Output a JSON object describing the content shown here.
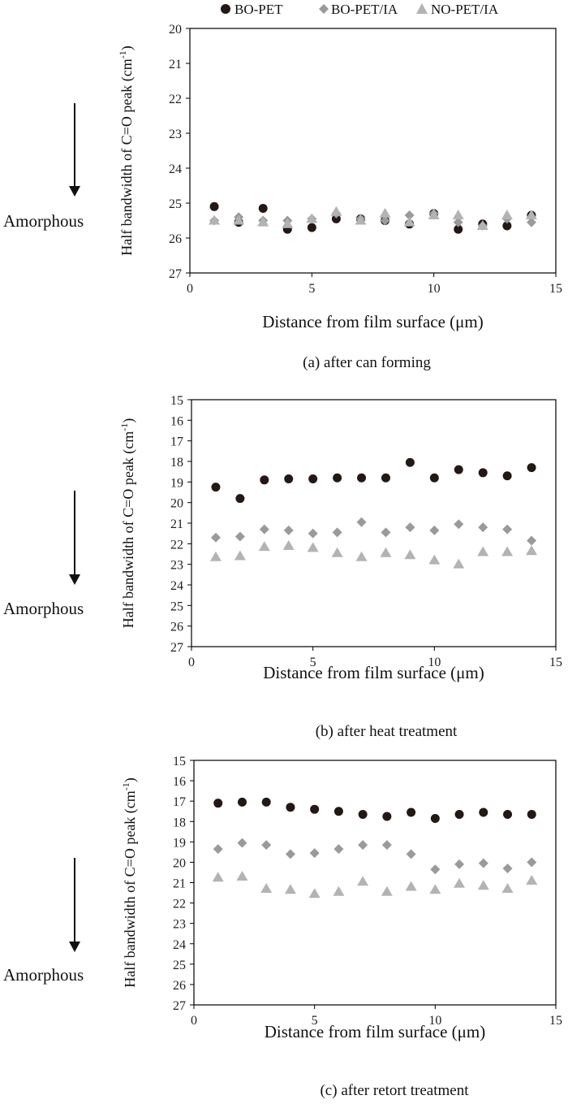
{
  "legend": {
    "items": [
      {
        "label": "BO-PET",
        "color": "#231815",
        "marker": "circle"
      },
      {
        "label": "BO-PET/IA",
        "color": "#9a9a9a",
        "marker": "diamond"
      },
      {
        "label": "NO-PET/IA",
        "color": "#b3b3b3",
        "marker": "triangle"
      }
    ]
  },
  "common": {
    "amorphous_label": "Amorphous",
    "ylabel": "Half bandwidth of C=O peak (cm",
    "ylabel_sup": "-1",
    "ylabel_close": ")",
    "xlabel": "Distance from film surface (μm)"
  },
  "chart_data": [
    {
      "type": "scatter",
      "caption": "(a) after can forming",
      "xlabel": "Distance from film surface (μm)",
      "ylabel": "Half bandwidth of C=O peak (cm-1)",
      "xlim": [
        0,
        15
      ],
      "ylim": [
        20,
        27
      ],
      "y_inverted": true,
      "xticks": [
        0,
        5,
        10,
        15
      ],
      "yticks": [
        20,
        21,
        22,
        23,
        24,
        25,
        26,
        27
      ],
      "grid": false,
      "legend_position": "top",
      "series": [
        {
          "name": "BO-PET",
          "x": [
            1,
            2,
            3,
            4,
            5,
            6,
            7,
            8,
            9,
            10,
            11,
            12,
            13,
            14
          ],
          "y": [
            25.1,
            25.55,
            25.15,
            25.75,
            25.7,
            25.45,
            25.45,
            25.5,
            25.6,
            25.3,
            25.75,
            25.6,
            25.65,
            25.35
          ]
        },
        {
          "name": "BO-PET/IA",
          "x": [
            1,
            2,
            3,
            4,
            5,
            6,
            7,
            8,
            9,
            10,
            11,
            12,
            13,
            14
          ],
          "y": [
            25.5,
            25.4,
            25.5,
            25.5,
            25.45,
            25.3,
            25.45,
            25.5,
            25.35,
            25.3,
            25.55,
            25.65,
            25.45,
            25.55
          ]
        },
        {
          "name": "NO-PET/IA",
          "x": [
            1,
            2,
            3,
            4,
            5,
            6,
            7,
            8,
            9,
            10,
            11,
            12,
            13,
            14
          ],
          "y": [
            25.5,
            25.5,
            25.55,
            25.6,
            25.45,
            25.25,
            25.5,
            25.3,
            25.55,
            25.35,
            25.35,
            25.65,
            25.35,
            25.35
          ]
        }
      ]
    },
    {
      "type": "scatter",
      "caption": "(b) after heat treatment",
      "xlabel": "Distance from film surface (μm)",
      "ylabel": "Half bandwidth of C=O peak (cm-1)",
      "xlim": [
        0,
        15
      ],
      "ylim": [
        15,
        27
      ],
      "y_inverted": true,
      "xticks": [
        0,
        5,
        10,
        15
      ],
      "yticks": [
        15,
        16,
        17,
        18,
        19,
        20,
        21,
        22,
        23,
        24,
        25,
        26,
        27
      ],
      "grid": false,
      "series": [
        {
          "name": "BO-PET",
          "x": [
            1,
            2,
            3,
            4,
            5,
            6,
            7,
            8,
            9,
            10,
            11,
            12,
            13,
            14
          ],
          "y": [
            19.25,
            19.8,
            18.9,
            18.85,
            18.85,
            18.8,
            18.8,
            18.8,
            18.05,
            18.8,
            18.4,
            18.55,
            18.7,
            18.3
          ]
        },
        {
          "name": "BO-PET/IA",
          "x": [
            1,
            2,
            3,
            4,
            5,
            6,
            7,
            8,
            9,
            10,
            11,
            12,
            13,
            14
          ],
          "y": [
            21.7,
            21.65,
            21.3,
            21.35,
            21.5,
            21.45,
            20.95,
            21.45,
            21.2,
            21.35,
            21.05,
            21.2,
            21.3,
            21.85
          ]
        },
        {
          "name": "NO-PET/IA",
          "x": [
            1,
            2,
            3,
            4,
            5,
            6,
            7,
            8,
            9,
            10,
            11,
            12,
            13,
            14
          ],
          "y": [
            22.65,
            22.6,
            22.15,
            22.1,
            22.2,
            22.45,
            22.65,
            22.45,
            22.55,
            22.8,
            23.0,
            22.4,
            22.4,
            22.35
          ]
        }
      ]
    },
    {
      "type": "scatter",
      "caption": "(c) after retort treatment",
      "xlabel": "Distance from film surface (μm)",
      "ylabel": "Half bandwidth of C=O peak (cm-1)",
      "xlim": [
        0,
        15
      ],
      "ylim": [
        15,
        27
      ],
      "y_inverted": true,
      "xticks": [
        0,
        5,
        10,
        15
      ],
      "yticks": [
        15,
        16,
        17,
        18,
        19,
        20,
        21,
        22,
        23,
        24,
        25,
        26,
        27
      ],
      "grid": false,
      "series": [
        {
          "name": "BO-PET",
          "x": [
            1,
            2,
            3,
            4,
            5,
            6,
            7,
            8,
            9,
            10,
            11,
            12,
            13,
            14
          ],
          "y": [
            17.1,
            17.05,
            17.05,
            17.3,
            17.4,
            17.5,
            17.65,
            17.75,
            17.55,
            17.85,
            17.65,
            17.55,
            17.65,
            17.65
          ]
        },
        {
          "name": "BO-PET/IA",
          "x": [
            1,
            2,
            3,
            4,
            5,
            6,
            7,
            8,
            9,
            10,
            11,
            12,
            13,
            14
          ],
          "y": [
            19.35,
            19.05,
            19.15,
            19.6,
            19.55,
            19.35,
            19.15,
            19.15,
            19.6,
            20.35,
            20.1,
            20.05,
            20.3,
            20.0
          ]
        },
        {
          "name": "NO-PET/IA",
          "x": [
            1,
            2,
            3,
            4,
            5,
            6,
            7,
            8,
            9,
            10,
            11,
            12,
            13,
            14
          ],
          "y": [
            20.75,
            20.7,
            21.3,
            21.35,
            21.55,
            21.45,
            20.95,
            21.45,
            21.2,
            21.35,
            21.05,
            21.15,
            21.3,
            20.9
          ]
        }
      ]
    }
  ]
}
